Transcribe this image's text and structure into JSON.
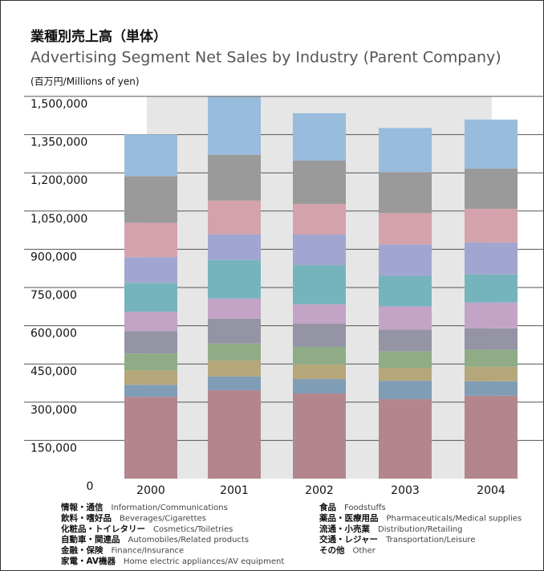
{
  "chart_data": {
    "type": "stacked_bar",
    "title": "業種別売上高（単体）",
    "subtitle": "Advertising Segment Net Sales by Industry (Parent Company)",
    "unit_label": "(百万円/Millions of yen)",
    "categories": [
      "2000",
      "2001",
      "2002",
      "2003",
      "2004"
    ],
    "ylim": [
      0,
      1500000
    ],
    "yticks": [
      0,
      {
        "value": 150000,
        "label": "150,000"
      },
      {
        "value": 300000,
        "label": "300,000"
      },
      {
        "value": 450000,
        "label": "450,000"
      },
      {
        "value": 600000,
        "label": "600,000"
      },
      {
        "value": 750000,
        "label": "750,000"
      },
      {
        "value": 900000,
        "label": "900,000"
      },
      {
        "value": 1050000,
        "label": "1,050,000"
      },
      {
        "value": 1200000,
        "label": "1,200,000"
      },
      {
        "value": 1350000,
        "label": "1,350,000"
      },
      {
        "value": 1500000,
        "label": "1,500,000"
      }
    ],
    "grid": true,
    "series": [
      {
        "name": "情報・通信",
        "name_en": "Information/Communications",
        "color": "#b3868e",
        "values": [
          321000,
          347000,
          334000,
          312000,
          325000
        ]
      },
      {
        "name": "飲料・嗜好品",
        "name_en": "Beverages/Cigarettes",
        "color": "#7f9db5",
        "values": [
          47000,
          54000,
          57000,
          72000,
          57000
        ]
      },
      {
        "name": "化粧品・トイレタリー",
        "name_en": "Cosmetics/Toiletries",
        "color": "#b5a77a",
        "values": [
          57000,
          63000,
          57000,
          50000,
          57000
        ]
      },
      {
        "name": "自動車・関連品",
        "name_en": "Automobiles/Related products",
        "color": "#8fac86",
        "values": [
          66000,
          66000,
          69000,
          66000,
          66000
        ]
      },
      {
        "name": "金融・保険",
        "name_en": "Finance/Insurance",
        "color": "#9494a4",
        "values": [
          88000,
          98000,
          91000,
          85000,
          85000
        ]
      },
      {
        "name": "家電・AV機器",
        "name_en": "Home electric appliances/AV equipment",
        "color": "#c3a4c6",
        "values": [
          76000,
          79000,
          76000,
          91000,
          101000
        ]
      },
      {
        "name": "食品",
        "name_en": "Foodstuffs",
        "color": "#76b4bd",
        "values": [
          113000,
          151000,
          154000,
          120000,
          110000
        ]
      },
      {
        "name": "薬品・医療用品",
        "name_en": "Pharmaceuticals/Medical supplies",
        "color": "#a0a6cf",
        "values": [
          101000,
          101000,
          120000,
          123000,
          126000
        ]
      },
      {
        "name": "流通・小売業",
        "name_en": "Distribution/Retailing",
        "color": "#d4a2ac",
        "values": [
          135000,
          132000,
          120000,
          123000,
          132000
        ]
      },
      {
        "name": "交通・レジャー",
        "name_en": "Transportation/Leisure",
        "color": "#9a9a9a",
        "values": [
          183000,
          180000,
          170000,
          161000,
          158000
        ]
      },
      {
        "name": "その他",
        "name_en": "Other",
        "color": "#99bcdc",
        "values": [
          164000,
          227000,
          186000,
          173000,
          192000
        ]
      }
    ]
  }
}
